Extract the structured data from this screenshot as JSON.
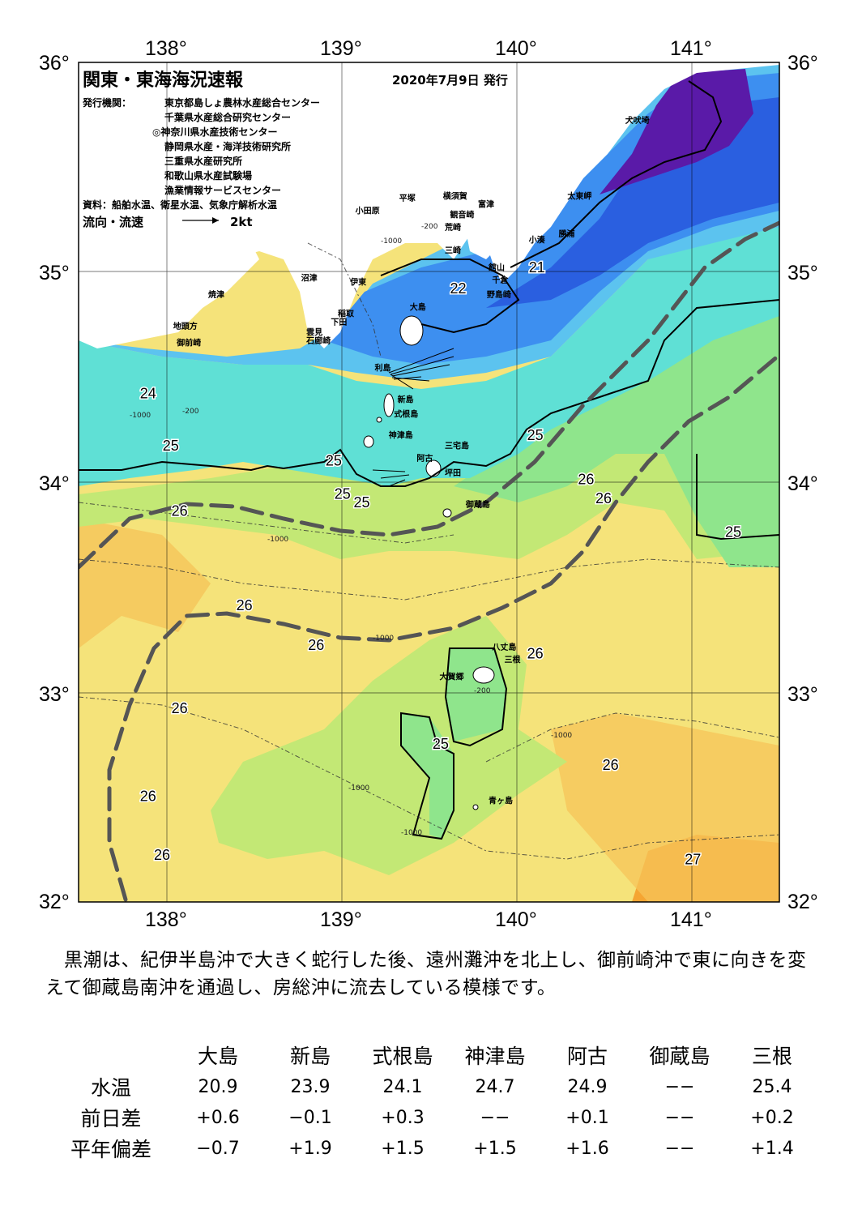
{
  "title": "関東・東海海況速報",
  "issue_date": "2020年7月9日 発行",
  "publisher_label": "発行機関：",
  "publishers": [
    "東京都島しょ農林水産総合センター",
    "千葉県水産総合研究センター",
    "◎神奈川県水産技術センター",
    "静岡県水産・海洋技術研究所",
    "三重県水産研究所",
    "和歌山県水産試験場",
    "漁業情報サービスセンター"
  ],
  "source_text": "資料：船舶水温、衛星水温、気象庁解析水温",
  "flow_legend_label": "流向・流速",
  "flow_legend_value": "2kt",
  "axes": {
    "lon_ticks": [
      "138°",
      "139°",
      "140°",
      "141°"
    ],
    "lat_ticks": [
      "36°",
      "35°",
      "34°",
      "33°",
      "32°"
    ]
  },
  "map_data": {
    "type": "sea-surface-temperature-map",
    "lon_range": [
      137.5,
      141.5
    ],
    "lat_range": [
      32,
      36
    ],
    "isotherm_labels": [
      {
        "value": "21",
        "lon": 140.07,
        "lat": 35.0
      },
      {
        "value": "22",
        "lon": 139.62,
        "lat": 34.9
      },
      {
        "value": "24",
        "lon": 137.85,
        "lat": 34.4
      },
      {
        "value": "25",
        "lon": 137.98,
        "lat": 34.15
      },
      {
        "value": "25",
        "lon": 138.91,
        "lat": 34.08
      },
      {
        "value": "25",
        "lon": 138.96,
        "lat": 33.92
      },
      {
        "value": "25",
        "lon": 139.07,
        "lat": 33.88
      },
      {
        "value": "25",
        "lon": 140.06,
        "lat": 34.2
      },
      {
        "value": "26",
        "lon": 140.35,
        "lat": 33.99
      },
      {
        "value": "26",
        "lon": 140.45,
        "lat": 33.9
      },
      {
        "value": "25",
        "lon": 141.19,
        "lat": 33.74
      },
      {
        "value": "26",
        "lon": 138.03,
        "lat": 33.84
      },
      {
        "value": "26",
        "lon": 138.4,
        "lat": 33.39
      },
      {
        "value": "26",
        "lon": 138.81,
        "lat": 33.2
      },
      {
        "value": "26",
        "lon": 140.06,
        "lat": 33.16
      },
      {
        "value": "26",
        "lon": 138.03,
        "lat": 32.9
      },
      {
        "value": "25",
        "lon": 139.52,
        "lat": 32.73
      },
      {
        "value": "26",
        "lon": 140.49,
        "lat": 32.63
      },
      {
        "value": "26",
        "lon": 137.85,
        "lat": 32.48
      },
      {
        "value": "26",
        "lon": 137.93,
        "lat": 32.2
      },
      {
        "value": "27",
        "lon": 140.96,
        "lat": 32.18
      }
    ],
    "depth_labels": [
      "-200",
      "-1000"
    ],
    "place_names": [
      {
        "name": "犬吠埼",
        "lon": 140.62,
        "lat": 35.71
      },
      {
        "name": "太東岬",
        "lon": 140.29,
        "lat": 35.35
      },
      {
        "name": "勝浦",
        "lon": 140.24,
        "lat": 35.17
      },
      {
        "name": "小湊",
        "lon": 140.07,
        "lat": 35.14
      },
      {
        "name": "富津",
        "lon": 139.78,
        "lat": 35.31
      },
      {
        "name": "横須賀",
        "lon": 139.58,
        "lat": 35.35
      },
      {
        "name": "平塚",
        "lon": 139.33,
        "lat": 35.34
      },
      {
        "name": "観音崎",
        "lon": 139.62,
        "lat": 35.26
      },
      {
        "name": "荒崎",
        "lon": 139.59,
        "lat": 35.2
      },
      {
        "name": "三崎",
        "lon": 139.59,
        "lat": 35.09
      },
      {
        "name": "小田原",
        "lon": 139.08,
        "lat": 35.28
      },
      {
        "name": "館山",
        "lon": 139.84,
        "lat": 35.01
      },
      {
        "name": "千倉",
        "lon": 139.86,
        "lat": 34.95
      },
      {
        "name": "野島崎",
        "lon": 139.83,
        "lat": 34.88
      },
      {
        "name": "沼津",
        "lon": 138.77,
        "lat": 34.96
      },
      {
        "name": "伊東",
        "lon": 139.05,
        "lat": 34.94
      },
      {
        "name": "焼津",
        "lon": 138.24,
        "lat": 34.88
      },
      {
        "name": "稲取",
        "lon": 138.98,
        "lat": 34.79
      },
      {
        "name": "下田",
        "lon": 138.94,
        "lat": 34.75
      },
      {
        "name": "大島",
        "lon": 139.39,
        "lat": 34.82
      },
      {
        "name": "雲見",
        "lon": 138.8,
        "lat": 34.7
      },
      {
        "name": "石廊崎",
        "lon": 138.8,
        "lat": 34.66
      },
      {
        "name": "地頭方",
        "lon": 138.04,
        "lat": 34.73
      },
      {
        "name": "御前崎",
        "lon": 138.06,
        "lat": 34.65
      },
      {
        "name": "利島",
        "lon": 139.19,
        "lat": 34.53
      },
      {
        "name": "新島",
        "lon": 139.32,
        "lat": 34.38
      },
      {
        "name": "式根島",
        "lon": 139.3,
        "lat": 34.31
      },
      {
        "name": "神津島",
        "lon": 139.27,
        "lat": 34.21
      },
      {
        "name": "三宅島",
        "lon": 139.59,
        "lat": 34.16
      },
      {
        "name": "阿古",
        "lon": 139.43,
        "lat": 34.1
      },
      {
        "name": "坪田",
        "lon": 139.59,
        "lat": 34.03
      },
      {
        "name": "御蔵島",
        "lon": 139.71,
        "lat": 33.88
      },
      {
        "name": "八丈島",
        "lon": 139.86,
        "lat": 33.2
      },
      {
        "name": "大賀郷",
        "lon": 139.56,
        "lat": 33.06
      },
      {
        "name": "三根",
        "lon": 139.93,
        "lat": 33.14
      },
      {
        "name": "青ヶ島",
        "lon": 139.84,
        "lat": 32.47
      }
    ],
    "colors": {
      "t20": "#5a1aa8",
      "t21": "#2a5fe0",
      "t22": "#3d8ff0",
      "t23": "#5cc3ef",
      "t24": "#5fe0d5",
      "t25": "#8fe58c",
      "t25b": "#c3e875",
      "t26": "#f5e37a",
      "t26b": "#f5c45a",
      "t27": "#f5a532",
      "land": "#ffffff",
      "kuroshio": "#555555"
    }
  },
  "summary_text": "黒潮は、紀伊半島沖で大きく蛇行した後、遠州灘沖を北上し、御前崎沖で東に向きを変えて御蔵島南沖を通過し、房総沖に流去している模様です。",
  "table": {
    "headers": [
      "",
      "大島",
      "新島",
      "式根島",
      "神津島",
      "阿古",
      "御蔵島",
      "三根"
    ],
    "rows": [
      {
        "label": "水温",
        "values": [
          "20.9",
          "23.9",
          "24.1",
          "24.7",
          "24.9",
          "−−",
          "25.4"
        ]
      },
      {
        "label": "前日差",
        "values": [
          "+0.6",
          "−0.1",
          "+0.3",
          "−−",
          "+0.1",
          "−−",
          "+0.2"
        ]
      },
      {
        "label": "平年偏差",
        "values": [
          "−0.7",
          "+1.9",
          "+1.5",
          "+1.5",
          "+1.6",
          "−−",
          "+1.4"
        ]
      }
    ]
  }
}
